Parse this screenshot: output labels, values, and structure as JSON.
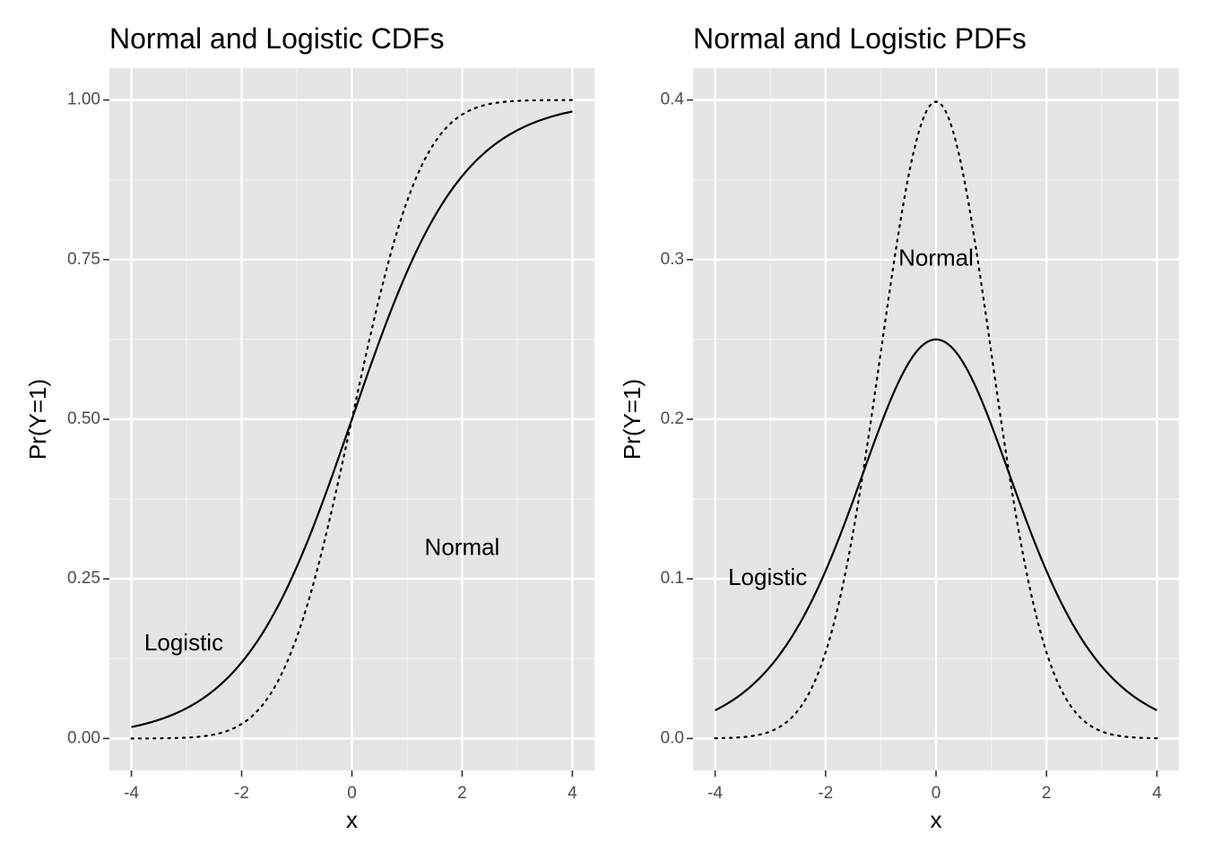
{
  "colors": {
    "panel_background": "#e5e5e5",
    "grid_major": "#ffffff",
    "grid_minor": "#f2f2f2",
    "line": "#000000",
    "tick_text": "#4d4d4d",
    "tick_mark": "#333333"
  },
  "chart_data": [
    {
      "type": "line",
      "title": "Normal and Logistic CDFs",
      "xlabel": "x",
      "ylabel": "Pr(Y=1)",
      "xlim": [
        -4.4,
        4.4
      ],
      "ylim": [
        -0.05,
        1.05
      ],
      "x_ticks": [
        -4,
        -2,
        0,
        2,
        4
      ],
      "x_tick_labels": [
        "-4",
        "-2",
        "0",
        "2",
        "4"
      ],
      "y_ticks": [
        0,
        0.25,
        0.5,
        0.75,
        1
      ],
      "y_tick_labels": [
        "0.00",
        "0.25",
        "0.50",
        "0.75",
        "1.00"
      ],
      "grid": true,
      "series": [
        {
          "name": "Logistic",
          "line_style": "solid",
          "x": [
            -4,
            -3.5,
            -3,
            -2.5,
            -2,
            -1.5,
            -1,
            -0.5,
            0,
            0.5,
            1,
            1.5,
            2,
            2.5,
            3,
            3.5,
            4
          ],
          "values": [
            0.018,
            0.029,
            0.047,
            0.076,
            0.119,
            0.182,
            0.269,
            0.378,
            0.5,
            0.622,
            0.731,
            0.818,
            0.881,
            0.924,
            0.953,
            0.971,
            0.982
          ]
        },
        {
          "name": "Normal",
          "line_style": "dotted",
          "x": [
            -4,
            -3.5,
            -3,
            -2.5,
            -2,
            -1.5,
            -1,
            -0.5,
            0,
            0.5,
            1,
            1.5,
            2,
            2.5,
            3,
            3.5,
            4
          ],
          "values": [
            0.0,
            0.0,
            0.001,
            0.006,
            0.023,
            0.067,
            0.159,
            0.309,
            0.5,
            0.691,
            0.841,
            0.933,
            0.977,
            0.994,
            0.999,
            1.0,
            1.0
          ]
        }
      ],
      "annotations": [
        {
          "text": "Logistic",
          "x": -3.05,
          "y": 0.148
        },
        {
          "text": "Normal",
          "x": 2.0,
          "y": 0.297
        }
      ]
    },
    {
      "type": "line",
      "title": "Normal and Logistic PDFs",
      "xlabel": "x",
      "ylabel": "Pr(Y=1)",
      "xlim": [
        -4.4,
        4.4
      ],
      "ylim": [
        -0.02,
        0.42
      ],
      "x_ticks": [
        -4,
        -2,
        0,
        2,
        4
      ],
      "x_tick_labels": [
        "-4",
        "-2",
        "0",
        "2",
        "4"
      ],
      "y_ticks": [
        0,
        0.1,
        0.2,
        0.3,
        0.4
      ],
      "y_tick_labels": [
        "0.0",
        "0.1",
        "0.2",
        "0.3",
        "0.4"
      ],
      "grid": true,
      "series": [
        {
          "name": "Logistic",
          "line_style": "solid",
          "x": [
            -4,
            -3.5,
            -3,
            -2.5,
            -2,
            -1.5,
            -1,
            -0.5,
            0,
            0.5,
            1,
            1.5,
            2,
            2.5,
            3,
            3.5,
            4
          ],
          "values": [
            0.018,
            0.029,
            0.045,
            0.07,
            0.105,
            0.149,
            0.197,
            0.235,
            0.25,
            0.235,
            0.197,
            0.149,
            0.105,
            0.07,
            0.045,
            0.029,
            0.018
          ]
        },
        {
          "name": "Normal",
          "line_style": "dotted",
          "x": [
            -4,
            -3.5,
            -3,
            -2.5,
            -2,
            -1.5,
            -1,
            -0.5,
            0,
            0.5,
            1,
            1.5,
            2,
            2.5,
            3,
            3.5,
            4
          ],
          "values": [
            0.0,
            0.001,
            0.004,
            0.018,
            0.054,
            0.13,
            0.242,
            0.352,
            0.399,
            0.352,
            0.242,
            0.13,
            0.054,
            0.018,
            0.004,
            0.001,
            0.0
          ]
        }
      ],
      "annotations": [
        {
          "text": "Logistic",
          "x": -3.05,
          "y": 0.1
        },
        {
          "text": "Normal",
          "x": 0.0,
          "y": 0.3
        }
      ]
    }
  ]
}
